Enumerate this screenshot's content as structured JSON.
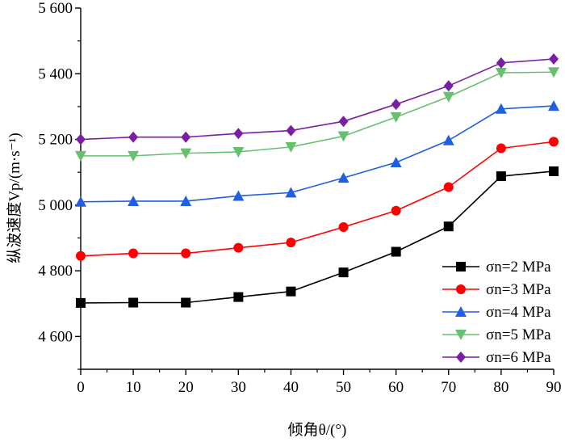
{
  "chart_data": {
    "type": "line",
    "title": "",
    "xlabel": "倾角θ/(°)",
    "ylabel": "纵波速度Vp/(m·s⁻¹)",
    "xlim": [
      0,
      90
    ],
    "ylim": [
      4500,
      5600
    ],
    "x_ticks": [
      0,
      10,
      20,
      30,
      40,
      50,
      60,
      70,
      80,
      90
    ],
    "y_ticks": [
      4600,
      4800,
      5000,
      5200,
      5400,
      5600
    ],
    "y_tick_labels": [
      "4 600",
      "4 800",
      "5 000",
      "5 200",
      "5 400",
      "5 600"
    ],
    "grid": false,
    "legend_position": "bottom-right",
    "x": [
      0,
      10,
      20,
      30,
      40,
      50,
      60,
      70,
      80,
      90
    ],
    "series": [
      {
        "name": "σn=2 MPa",
        "color": "#000000",
        "marker": "square",
        "values": [
          4702,
          4703,
          4703,
          4720,
          4737,
          4795,
          4858,
          4935,
          5088,
          5103
        ]
      },
      {
        "name": "σn=3 MPa",
        "color": "#ff0000",
        "marker": "circle",
        "values": [
          4845,
          4853,
          4853,
          4870,
          4886,
          4933,
          4983,
          5055,
          5173,
          5193
        ]
      },
      {
        "name": "σn=4 MPa",
        "color": "#1f5fe0",
        "marker": "triangle-up",
        "values": [
          5010,
          5012,
          5012,
          5028,
          5038,
          5083,
          5130,
          5197,
          5293,
          5302
        ]
      },
      {
        "name": "σn=5 MPa",
        "color": "#66c070",
        "marker": "triangle-down",
        "values": [
          5150,
          5150,
          5158,
          5162,
          5177,
          5210,
          5268,
          5330,
          5403,
          5405
        ]
      },
      {
        "name": "σn=6 MPa",
        "color": "#7b1fa2",
        "marker": "diamond",
        "values": [
          5200,
          5207,
          5207,
          5218,
          5227,
          5255,
          5307,
          5363,
          5433,
          5445
        ]
      }
    ]
  }
}
